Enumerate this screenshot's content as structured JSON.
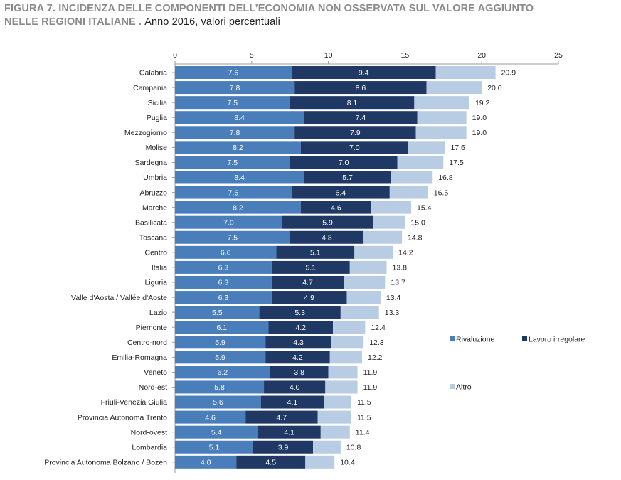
{
  "header": {
    "title_line1": "FIGURA 7. INCIDENZA DELLE COMPONENTI DELL’ECONOMIA NON OSSERVATA SUL VALORE AGGIUNTO",
    "title_line2": "NELLE REGIONI ITALIANE .",
    "subtitle": "Anno 2016, valori percentuali"
  },
  "chart_data": {
    "type": "bar",
    "orientation": "horizontal",
    "stacked": true,
    "categories": [
      "Calabria",
      "Campania",
      "Sicilia",
      "Puglia",
      "Mezzogiorno",
      "Molise",
      "Sardegna",
      "Umbria",
      "Abruzzo",
      "Marche",
      "Basilicata",
      "Toscana",
      "Centro",
      "Italia",
      "Liguria",
      "Valle d'Aosta / Vallée d'Aoste",
      "Lazio",
      "Piemonte",
      "Centro-nord",
      "Emilia-Romagna",
      "Veneto",
      "Nord-est",
      "Friuli-Venezia Giulia",
      "Provincia Autonoma Trento",
      "Nord-ovest",
      "Lombardia",
      "Provincia Autonoma Bolzano / Bozen"
    ],
    "series": [
      {
        "name": "Rivaluzione",
        "color": "#4a7ebb",
        "values": [
          7.6,
          7.8,
          7.5,
          8.4,
          7.8,
          8.2,
          7.5,
          8.4,
          7.6,
          8.2,
          7.0,
          7.5,
          6.6,
          6.3,
          6.3,
          6.3,
          5.5,
          6.1,
          5.9,
          5.9,
          6.2,
          5.8,
          5.6,
          4.6,
          5.4,
          5.1,
          4.0
        ]
      },
      {
        "name": "Lavoro irregolare",
        "color": "#1f3864",
        "values": [
          9.4,
          8.6,
          8.1,
          7.4,
          7.9,
          7.0,
          7.0,
          5.7,
          6.4,
          4.6,
          5.9,
          4.8,
          5.1,
          5.1,
          4.7,
          4.9,
          5.3,
          4.2,
          4.3,
          4.2,
          3.8,
          4.0,
          4.1,
          4.7,
          4.1,
          3.9,
          4.5
        ]
      },
      {
        "name": "Altro",
        "color": "#b8cce4",
        "values": [
          3.9,
          3.6,
          3.6,
          3.2,
          3.3,
          2.4,
          3.0,
          2.7,
          2.5,
          2.6,
          2.1,
          2.5,
          2.5,
          2.4,
          2.7,
          2.2,
          2.5,
          2.1,
          2.1,
          2.1,
          1.9,
          2.1,
          1.8,
          2.2,
          1.9,
          1.8,
          1.9
        ]
      }
    ],
    "totals": [
      20.9,
      20.0,
      19.2,
      19.0,
      19.0,
      17.6,
      17.5,
      16.8,
      16.5,
      15.4,
      15.0,
      14.8,
      14.2,
      13.8,
      13.7,
      13.4,
      13.3,
      12.4,
      12.3,
      12.2,
      11.9,
      11.9,
      11.5,
      11.5,
      11.4,
      10.8,
      10.4
    ],
    "xlim": [
      0,
      25
    ],
    "xticks": [
      "0",
      "5",
      "10",
      "15",
      "20",
      "25"
    ],
    "grid": false,
    "legend_position": "right"
  }
}
